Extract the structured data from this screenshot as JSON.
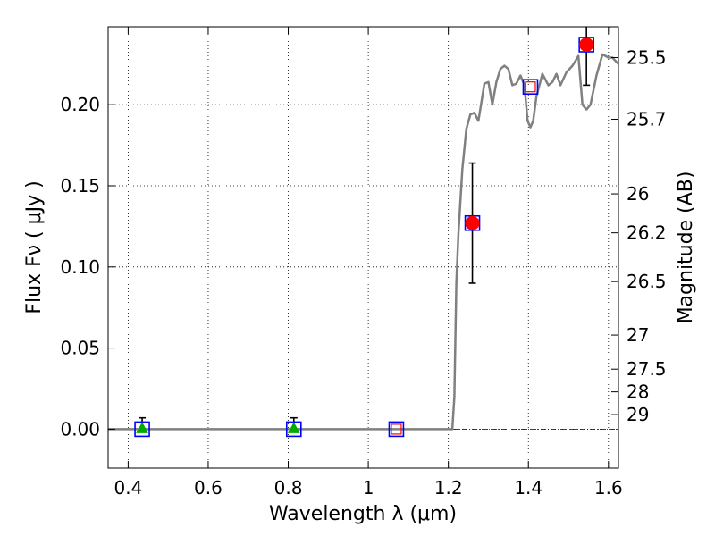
{
  "chart_data": {
    "type": "scatter",
    "title": "",
    "xlabel": "Wavelength  λ (μm)",
    "ylabel": "Flux  Fν  ( μJy )",
    "y2label": "Magnitude (AB)",
    "xlim": [
      0.35,
      1.625
    ],
    "ylim": [
      -0.024,
      0.248
    ],
    "grid": true,
    "x_ticks": [
      0.4,
      0.6,
      0.8,
      1.0,
      1.2,
      1.4,
      1.6
    ],
    "x_tick_labels": [
      "0.4",
      "0.6",
      "0.8",
      "1",
      "1.2",
      "1.4",
      "1.6"
    ],
    "y_ticks": [
      0.0,
      0.05,
      0.1,
      0.15,
      0.2
    ],
    "y_tick_labels": [
      "0.00",
      "0.05",
      "0.10",
      "0.15",
      "0.20"
    ],
    "y2_ticks": [
      {
        "label": "25.5",
        "flux": 0.229
      },
      {
        "label": "25.7",
        "flux": 0.191
      },
      {
        "label": "26",
        "flux": 0.145
      },
      {
        "label": "26.2",
        "flux": 0.121
      },
      {
        "label": "26.5",
        "flux": 0.091
      },
      {
        "label": "27",
        "flux": 0.058
      },
      {
        "label": "27.5",
        "flux": 0.037
      },
      {
        "label": "28",
        "flux": 0.023
      },
      {
        "label": "29",
        "flux": 0.009
      }
    ],
    "series": [
      {
        "marker": "circle",
        "color": "#ff0000",
        "points": [
          {
            "x": 1.26,
            "y": 0.127,
            "err": 0.037
          },
          {
            "x": 1.545,
            "y": 0.237,
            "err": 0.025
          }
        ]
      },
      {
        "marker": "triangle",
        "color": "#00aa00",
        "points": [
          {
            "x": 0.435,
            "y": 0.0,
            "err_up": 0.007
          },
          {
            "x": 0.814,
            "y": 0.0,
            "err_up": 0.007
          }
        ]
      },
      {
        "marker": "square-open-red",
        "color": "#ff0000",
        "points": [
          {
            "x": 1.07,
            "y": 0.0
          },
          {
            "x": 1.405,
            "y": 0.211
          }
        ]
      },
      {
        "marker": "square-open-blue",
        "color": "#0000ff",
        "points": [
          {
            "x": 0.435,
            "y": 0.0
          },
          {
            "x": 0.814,
            "y": 0.0
          },
          {
            "x": 1.07,
            "y": 0.0
          },
          {
            "x": 1.26,
            "y": 0.127
          },
          {
            "x": 1.405,
            "y": 0.211
          },
          {
            "x": 1.545,
            "y": 0.237
          }
        ]
      },
      {
        "marker": "line",
        "color": "#808080",
        "points": [
          {
            "x": 0.35,
            "y": 0.0
          },
          {
            "x": 1.21,
            "y": 0.0
          },
          {
            "x": 1.215,
            "y": 0.02
          },
          {
            "x": 1.22,
            "y": 0.09
          },
          {
            "x": 1.225,
            "y": 0.12
          },
          {
            "x": 1.235,
            "y": 0.16
          },
          {
            "x": 1.245,
            "y": 0.185
          },
          {
            "x": 1.255,
            "y": 0.194
          },
          {
            "x": 1.265,
            "y": 0.195
          },
          {
            "x": 1.275,
            "y": 0.19
          },
          {
            "x": 1.285,
            "y": 0.205
          },
          {
            "x": 1.29,
            "y": 0.213
          },
          {
            "x": 1.3,
            "y": 0.214
          },
          {
            "x": 1.31,
            "y": 0.2
          },
          {
            "x": 1.32,
            "y": 0.214
          },
          {
            "x": 1.33,
            "y": 0.222
          },
          {
            "x": 1.34,
            "y": 0.224
          },
          {
            "x": 1.35,
            "y": 0.222
          },
          {
            "x": 1.36,
            "y": 0.212
          },
          {
            "x": 1.37,
            "y": 0.213
          },
          {
            "x": 1.38,
            "y": 0.218
          },
          {
            "x": 1.39,
            "y": 0.212
          },
          {
            "x": 1.398,
            "y": 0.19
          },
          {
            "x": 1.405,
            "y": 0.186
          },
          {
            "x": 1.412,
            "y": 0.19
          },
          {
            "x": 1.42,
            "y": 0.205
          },
          {
            "x": 1.435,
            "y": 0.219
          },
          {
            "x": 1.45,
            "y": 0.212
          },
          {
            "x": 1.46,
            "y": 0.214
          },
          {
            "x": 1.47,
            "y": 0.219
          },
          {
            "x": 1.48,
            "y": 0.212
          },
          {
            "x": 1.495,
            "y": 0.22
          },
          {
            "x": 1.51,
            "y": 0.224
          },
          {
            "x": 1.525,
            "y": 0.23
          },
          {
            "x": 1.535,
            "y": 0.2
          },
          {
            "x": 1.545,
            "y": 0.197
          },
          {
            "x": 1.555,
            "y": 0.2
          },
          {
            "x": 1.57,
            "y": 0.218
          },
          {
            "x": 1.585,
            "y": 0.231
          },
          {
            "x": 1.6,
            "y": 0.229
          },
          {
            "x": 1.61,
            "y": 0.229
          },
          {
            "x": 1.625,
            "y": 0.225
          }
        ]
      }
    ]
  }
}
